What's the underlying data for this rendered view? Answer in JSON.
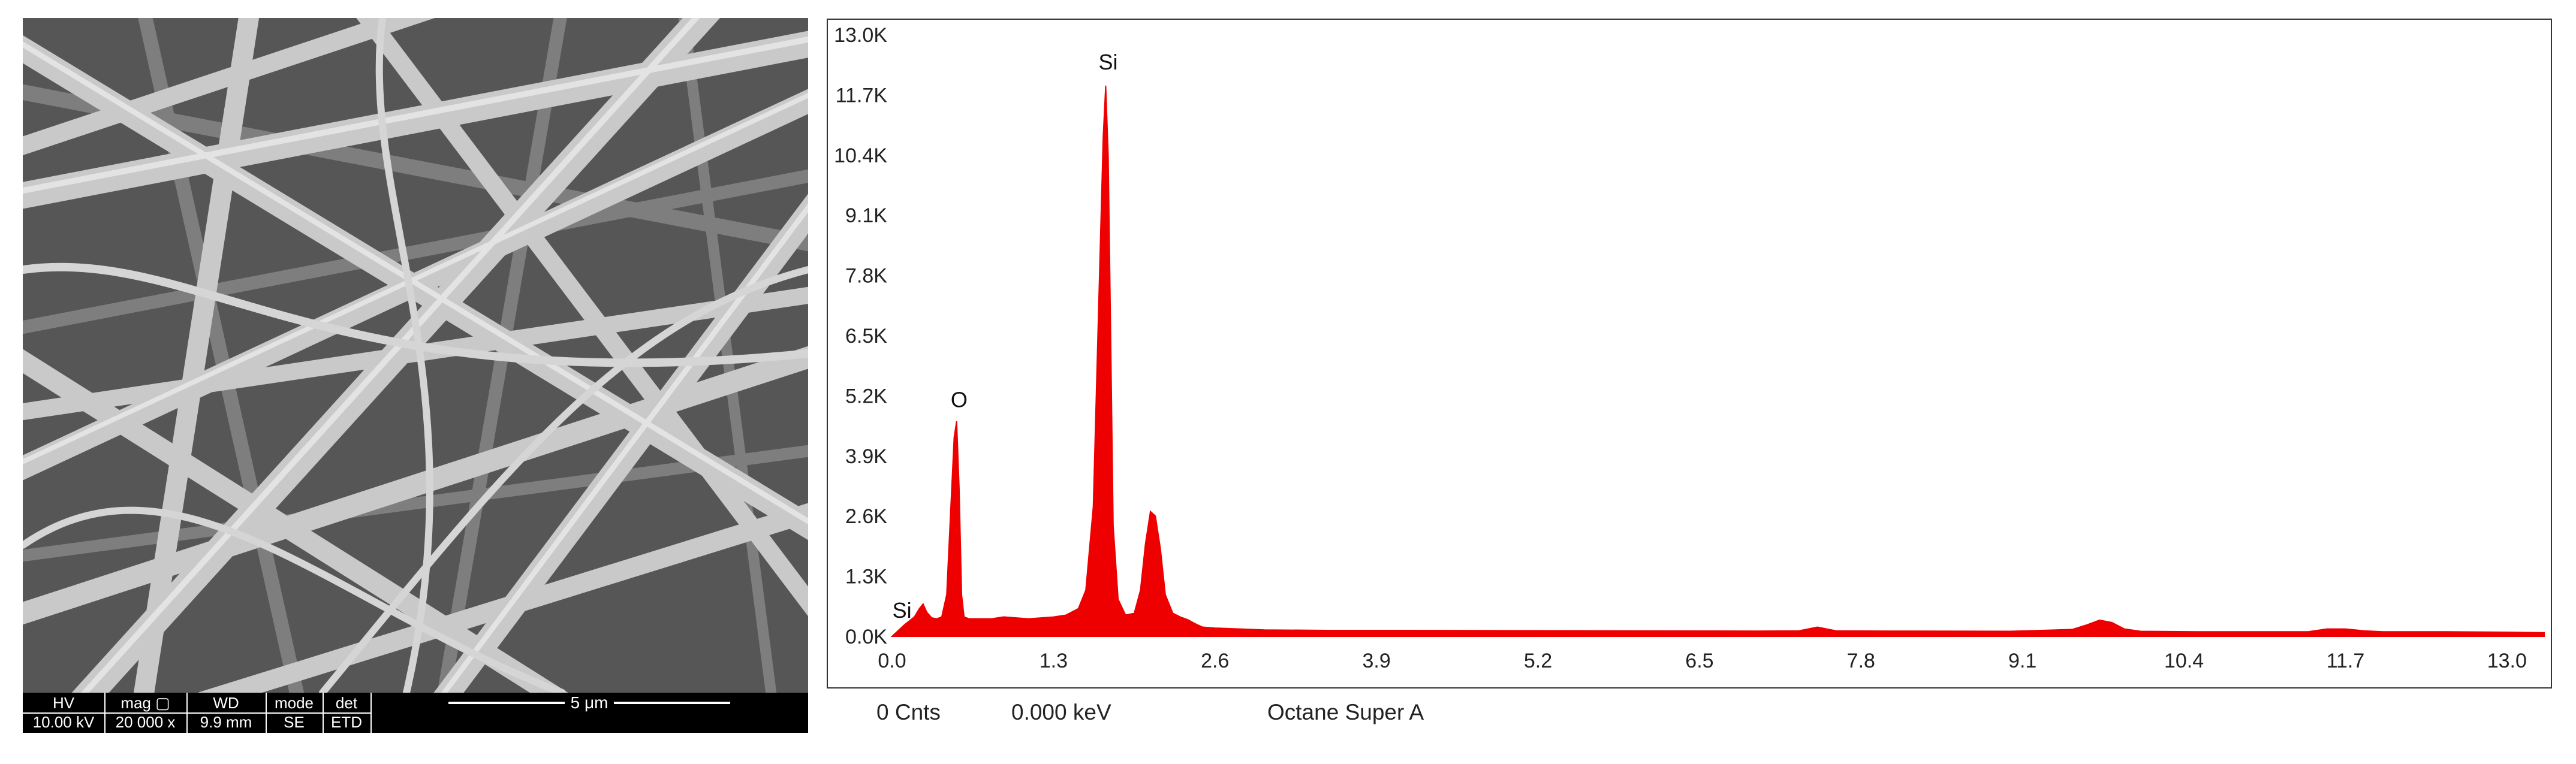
{
  "sem": {
    "info": [
      {
        "header": "HV",
        "value": "10.00 kV"
      },
      {
        "header": "mag ▢",
        "value": "20 000 x"
      },
      {
        "header": "WD",
        "value": "9.9 mm"
      },
      {
        "header": "mode",
        "value": "SE"
      },
      {
        "header": "det",
        "value": "ETD"
      }
    ],
    "scale_label": "5 μm"
  },
  "status": {
    "counts": "0 Cnts",
    "energy": "0.000 keV",
    "detector": "Octane Super A"
  },
  "chart_data": {
    "type": "area",
    "xlim": [
      0,
      13.3
    ],
    "ylim": [
      0,
      13000
    ],
    "x_ticks": [
      "0.0",
      "1.3",
      "2.6",
      "3.9",
      "5.2",
      "6.5",
      "7.8",
      "9.1",
      "10.4",
      "11.7",
      "13.0"
    ],
    "y_ticks": [
      "0.0K",
      "1.3K",
      "2.6K",
      "3.9K",
      "5.2K",
      "6.5K",
      "7.8K",
      "9.1K",
      "10.4K",
      "11.7K",
      "13.0K"
    ],
    "grid": false,
    "color": "#ee0000",
    "series": [
      {
        "x": [
          0.0,
          0.1,
          0.18,
          0.22,
          0.25,
          0.28,
          0.32,
          0.36,
          0.4,
          0.44,
          0.47,
          0.5,
          0.52,
          0.54,
          0.56,
          0.58,
          0.62,
          0.7,
          0.8,
          0.9,
          1.0,
          1.1,
          1.2,
          1.3,
          1.4,
          1.5,
          1.56,
          1.62,
          1.66,
          1.7,
          1.72,
          1.74,
          1.76,
          1.78,
          1.82,
          1.88,
          1.95,
          2.0,
          2.04,
          2.08,
          2.12,
          2.16,
          2.2,
          2.26,
          2.32,
          2.38,
          2.45,
          2.5,
          2.6,
          2.8,
          3.0,
          3.5,
          4.0,
          5.0,
          6.0,
          7.0,
          7.3,
          7.45,
          7.6,
          8.0,
          9.0,
          9.5,
          9.62,
          9.72,
          9.82,
          9.92,
          10.05,
          10.5,
          11.0,
          11.4,
          11.55,
          11.7,
          11.85,
          12.0,
          12.5,
          13.0,
          13.3
        ],
        "y": [
          0,
          250,
          420,
          600,
          700,
          520,
          400,
          380,
          420,
          900,
          2600,
          4300,
          4650,
          3200,
          900,
          420,
          380,
          380,
          380,
          420,
          400,
          380,
          400,
          420,
          460,
          600,
          1000,
          2800,
          6800,
          10800,
          11900,
          10400,
          6500,
          2400,
          800,
          460,
          500,
          1000,
          2000,
          2700,
          2600,
          1900,
          900,
          500,
          420,
          360,
          260,
          200,
          180,
          160,
          140,
          130,
          130,
          125,
          120,
          115,
          120,
          200,
          120,
          115,
          110,
          150,
          250,
          350,
          300,
          160,
          110,
          100,
          100,
          100,
          160,
          160,
          120,
          100,
          100,
          90,
          80
        ]
      }
    ],
    "annotations": [
      {
        "text": "Si",
        "x": 0.08,
        "y": 400
      },
      {
        "text": "O",
        "x": 0.54,
        "y": 4950
      },
      {
        "text": "Si",
        "x": 1.74,
        "y": 12250
      }
    ]
  }
}
